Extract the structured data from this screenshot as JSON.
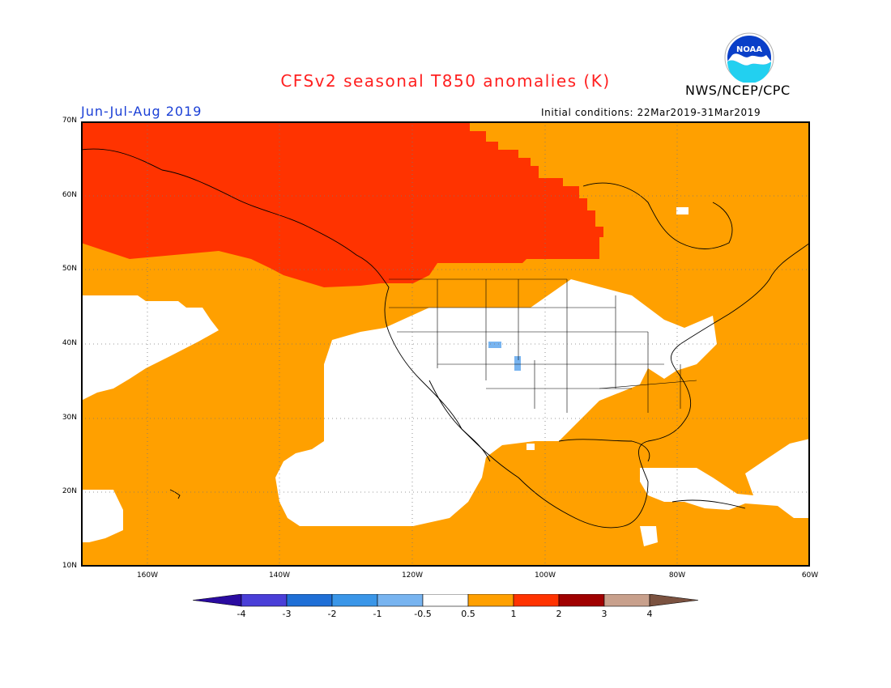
{
  "header": {
    "title": "CFSv2 seasonal T850 anomalies (K)",
    "season": "Jun-Jul-Aug 2019",
    "initial_conditions": "Initial conditions: 22Mar2019-31Mar2019",
    "agency": "NWS/NCEP/CPC",
    "logo_text": "NOAA"
  },
  "map": {
    "lat_labels": [
      "70N",
      "60N",
      "50N",
      "40N",
      "30N",
      "20N",
      "10N"
    ],
    "lon_labels": [
      "160W",
      "140W",
      "120W",
      "100W",
      "80W",
      "60W"
    ],
    "extent": {
      "lon": [
        -170,
        -60
      ],
      "lat": [
        10,
        70
      ]
    },
    "anomaly_colors": {
      "neutral": "#ffffff",
      "warm_0_5_to_1": "#ffa000",
      "warm_1_to_2": "#ff3300",
      "cool_minus_1_to_minus_0_5": "#78b4f0"
    }
  },
  "colorbar": {
    "labels": [
      "-4",
      "-3",
      "-2",
      "-1",
      "-0.5",
      "0.5",
      "1",
      "2",
      "3",
      "4"
    ],
    "colors": [
      "#2a0ba0",
      "#4a3fd8",
      "#1f6fd6",
      "#3a96e8",
      "#78b4f0",
      "#ffffff",
      "#ffa000",
      "#ff3300",
      "#a00000",
      "#c8a08c",
      "#7b5240"
    ]
  }
}
